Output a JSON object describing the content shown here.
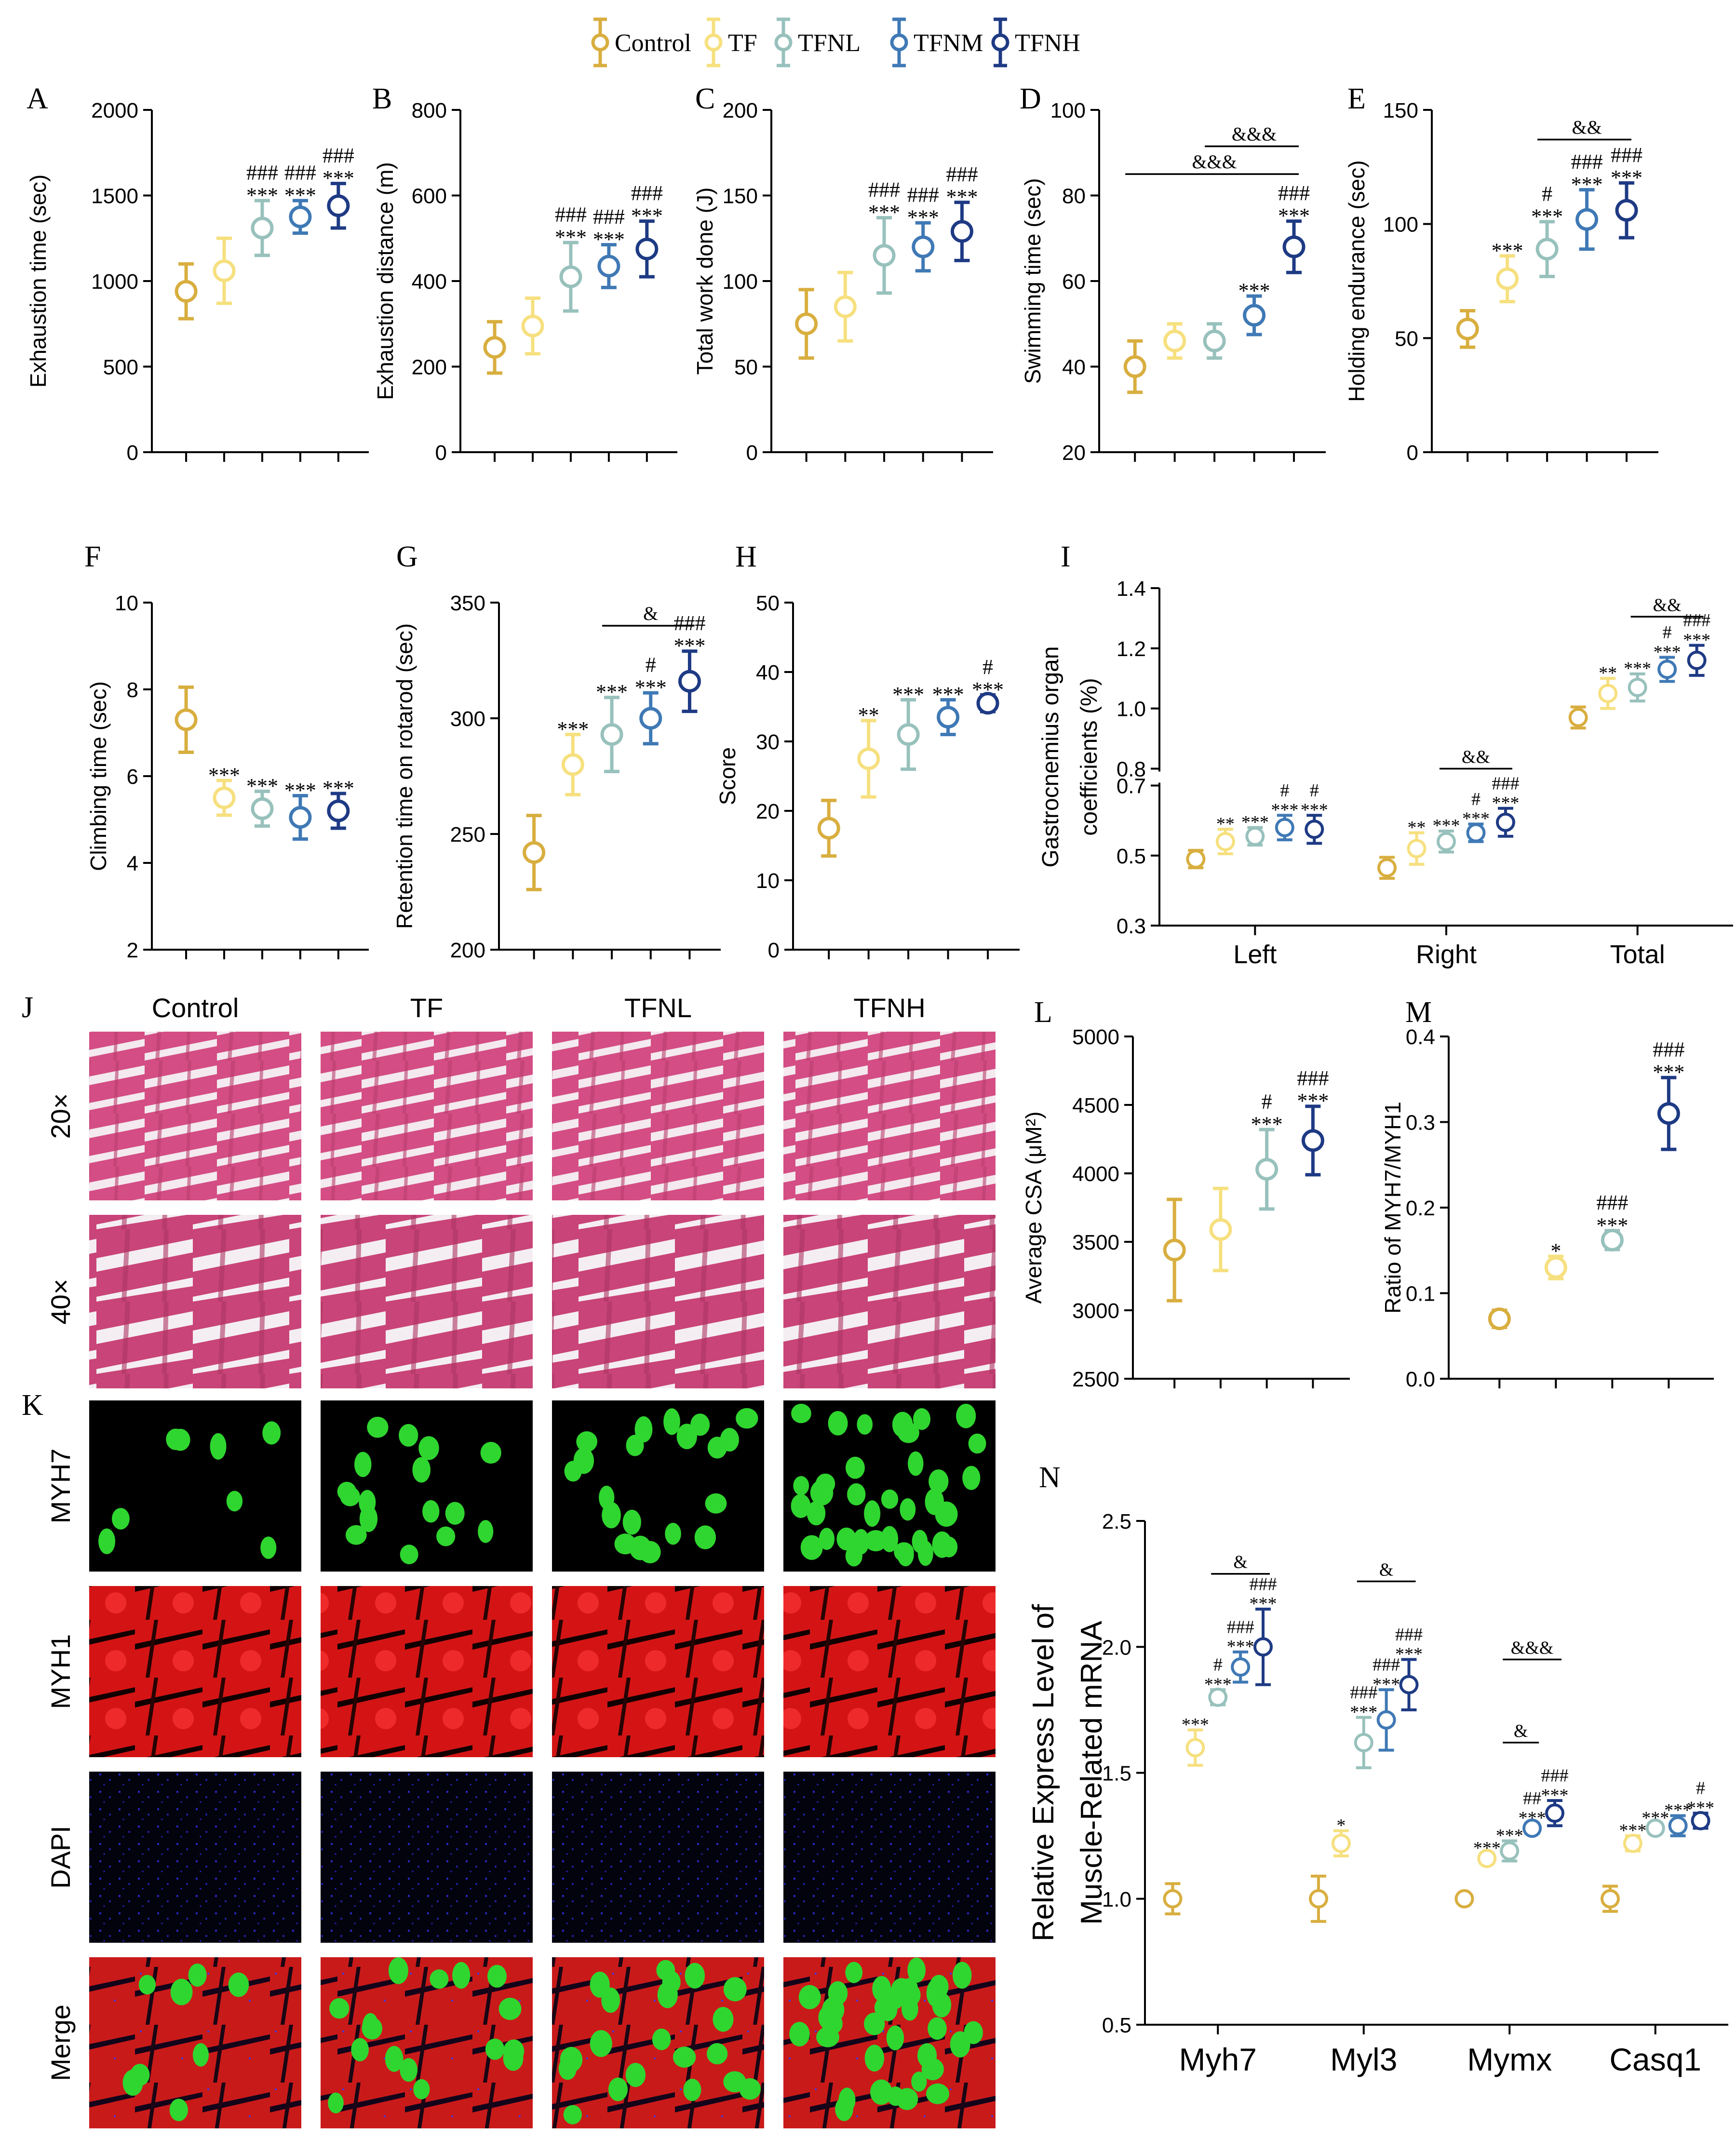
{
  "colors": {
    "Control": "#D8AE3F",
    "TF": "#F6E07F",
    "TFNL": "#98C1BC",
    "TFNM": "#3F79B5",
    "TFNH": "#1E3A84",
    "text": "#000000"
  },
  "legend": [
    "Control",
    "TF",
    "TFNL",
    "TFNM",
    "TFNH"
  ],
  "chart_data": [
    {
      "id": "A",
      "type": "scatter",
      "ylabel": "Exhaustion time (sec)",
      "ylim": [
        0,
        2000
      ],
      "ticks": [
        0,
        500,
        1000,
        1500,
        2000
      ],
      "groups": [
        "Control",
        "TF",
        "TFNL",
        "TFNM",
        "TFNH"
      ],
      "values": [
        940,
        1060,
        1310,
        1375,
        1440
      ],
      "errors": [
        160,
        190,
        160,
        95,
        130
      ],
      "annotations": [
        [],
        [],
        [
          "###",
          "***"
        ],
        [
          "###",
          "***"
        ],
        [
          "###",
          "***"
        ]
      ],
      "brackets": []
    },
    {
      "id": "B",
      "type": "scatter",
      "ylabel": "Exhaustion distance (m)",
      "ylim": [
        0,
        800
      ],
      "ticks": [
        0,
        200,
        400,
        600,
        800
      ],
      "groups": [
        "Control",
        "TF",
        "TFNL",
        "TFNM",
        "TFNH"
      ],
      "values": [
        245,
        295,
        410,
        435,
        475
      ],
      "errors": [
        60,
        65,
        80,
        50,
        65
      ],
      "annotations": [
        [],
        [],
        [
          "###",
          "***"
        ],
        [
          "###",
          "***"
        ],
        [
          "###",
          "***"
        ]
      ],
      "brackets": []
    },
    {
      "id": "C",
      "type": "scatter",
      "ylabel": "Total work done (J)",
      "ylim": [
        0,
        200
      ],
      "ticks": [
        0,
        50,
        100,
        150,
        200
      ],
      "groups": [
        "Control",
        "TF",
        "TFNL",
        "TFNM",
        "TFNH"
      ],
      "values": [
        75,
        85,
        115,
        120,
        129
      ],
      "errors": [
        20,
        20,
        22,
        14,
        17
      ],
      "annotations": [
        [],
        [],
        [
          "###",
          "***"
        ],
        [
          "###",
          "***"
        ],
        [
          "###",
          "***"
        ]
      ],
      "brackets": []
    },
    {
      "id": "D",
      "type": "scatter",
      "ylabel": "Swimming time (sec)",
      "ylim": [
        20,
        100
      ],
      "ticks": [
        20,
        40,
        60,
        80,
        100
      ],
      "groups": [
        "Control",
        "TF",
        "TFNL",
        "TFNM",
        "TFNH"
      ],
      "values": [
        40,
        46,
        46,
        52,
        68
      ],
      "errors": [
        6,
        4,
        4,
        4.5,
        6
      ],
      "annotations": [
        [],
        [],
        [],
        [
          "***"
        ],
        [
          "###",
          "***"
        ]
      ],
      "brackets": [
        {
          "from": 0,
          "to": 4,
          "y": 85,
          "label": "&&&"
        },
        {
          "from": 2,
          "to": 4,
          "y": 91.5,
          "label": "&&&"
        }
      ]
    },
    {
      "id": "E",
      "type": "scatter",
      "ylabel": "Holding endurance (sec)",
      "ylim": [
        0,
        150
      ],
      "ticks": [
        0,
        50,
        100,
        150
      ],
      "groups": [
        "Control",
        "TF",
        "TFNL",
        "TFNM",
        "TFNH"
      ],
      "values": [
        54,
        76,
        89,
        102,
        106
      ],
      "errors": [
        8,
        10,
        12,
        13,
        12
      ],
      "annotations": [
        [],
        [
          "***"
        ],
        [
          "#",
          "***"
        ],
        [
          "###",
          "***"
        ],
        [
          "###",
          "***"
        ]
      ],
      "brackets": [
        {
          "from": 2,
          "to": 4,
          "y": 137,
          "label": "&&"
        }
      ]
    },
    {
      "id": "F",
      "type": "scatter",
      "ylabel": "Climbing time (sec)",
      "ylim": [
        2,
        10
      ],
      "ticks": [
        2,
        4,
        6,
        8,
        10
      ],
      "groups": [
        "Control",
        "TF",
        "TFNL",
        "TFNM",
        "TFNH"
      ],
      "values": [
        7.3,
        5.5,
        5.25,
        5.05,
        5.2
      ],
      "errors": [
        0.75,
        0.4,
        0.4,
        0.5,
        0.4
      ],
      "annotations": [
        [],
        [
          "***"
        ],
        [
          "***"
        ],
        [
          "***"
        ],
        [
          "***"
        ]
      ],
      "brackets": []
    },
    {
      "id": "G",
      "type": "scatter",
      "ylabel": "Retention time on rotarod (sec)",
      "ylim": [
        200,
        350
      ],
      "ticks": [
        200,
        250,
        300,
        350
      ],
      "groups": [
        "Control",
        "TF",
        "TFNL",
        "TFNM",
        "TFNH"
      ],
      "values": [
        242,
        280,
        293,
        300,
        316
      ],
      "errors": [
        16,
        13,
        16,
        11,
        13
      ],
      "annotations": [
        [],
        [
          "***"
        ],
        [
          "***"
        ],
        [
          "#",
          "***"
        ],
        [
          "###",
          "***"
        ]
      ],
      "brackets": [
        {
          "from": 2,
          "to": 4,
          "y": 340,
          "label": "&"
        }
      ]
    },
    {
      "id": "H",
      "type": "scatter",
      "ylabel": "Score",
      "ylim": [
        0,
        50
      ],
      "ticks": [
        0,
        10,
        20,
        30,
        40,
        50
      ],
      "groups": [
        "Control",
        "TF",
        "TFNL",
        "TFNM",
        "TFNH"
      ],
      "values": [
        17.5,
        27.5,
        31,
        33.5,
        35.5
      ],
      "errors": [
        4,
        5.5,
        5,
        2.5,
        1.2
      ],
      "annotations": [
        [],
        [
          "**"
        ],
        [
          "***"
        ],
        [
          "***"
        ],
        [
          "#",
          "***"
        ]
      ],
      "brackets": []
    },
    {
      "id": "I",
      "type": "scatter",
      "ylabel": "Gastrocnemius organ coefficients (%)",
      "ylabel_lines": [
        "Gastrocnemius organ",
        "coefficients (%)"
      ],
      "ylim": [
        0.3,
        1.4
      ],
      "ticks": [
        0.3,
        0.5,
        0.7,
        0.8,
        1.0,
        1.2,
        1.4
      ],
      "categories": [
        "Left",
        "Right",
        "Total"
      ],
      "series": [
        {
          "name": "Control",
          "values": [
            0.49,
            0.465,
            0.97
          ],
          "errors": [
            0.025,
            0.03,
            0.035
          ],
          "annotations": [
            [],
            [],
            []
          ]
        },
        {
          "name": "TF",
          "values": [
            0.54,
            0.52,
            1.05
          ],
          "errors": [
            0.035,
            0.045,
            0.05
          ],
          "annotations": [
            [
              "**"
            ],
            [
              "**"
            ],
            [
              "**"
            ]
          ]
        },
        {
          "name": "TFNL",
          "values": [
            0.555,
            0.54,
            1.07
          ],
          "errors": [
            0.025,
            0.03,
            0.045
          ],
          "annotations": [
            [
              "***"
            ],
            [
              "***"
            ],
            [
              "***"
            ]
          ]
        },
        {
          "name": "TFNM",
          "values": [
            0.58,
            0.565,
            1.13
          ],
          "errors": [
            0.035,
            0.025,
            0.04
          ],
          "annotations": [
            [
              "#",
              "***"
            ],
            [
              "#",
              "***"
            ],
            [
              "#",
              "***"
            ]
          ]
        },
        {
          "name": "TFNH",
          "values": [
            0.575,
            0.595,
            1.16
          ],
          "errors": [
            0.04,
            0.04,
            0.05
          ],
          "annotations": [
            [
              "#",
              "***"
            ],
            [
              "###",
              "***"
            ],
            [
              "###",
              "***"
            ]
          ]
        }
      ],
      "brackets": [
        {
          "cat": 1,
          "from": 2,
          "to": 4,
          "y": 0.76,
          "label": "&&"
        },
        {
          "cat": 2,
          "from": 2,
          "to": 4,
          "y": 1.305,
          "label": "&&"
        }
      ]
    },
    {
      "id": "L",
      "type": "scatter",
      "ylabel": "Average CSA (μM²)",
      "ylim": [
        2500,
        5000
      ],
      "ticks": [
        2500,
        3000,
        3500,
        4000,
        4500,
        5000
      ],
      "groups": [
        "Control",
        "TF",
        "TFNL",
        "TFNH"
      ],
      "values": [
        3440,
        3590,
        4030,
        4240
      ],
      "errors": [
        370,
        300,
        290,
        250
      ],
      "annotations": [
        [],
        [],
        [
          "#",
          "***"
        ],
        [
          "###",
          "***"
        ]
      ],
      "brackets": []
    },
    {
      "id": "M",
      "type": "scatter",
      "ylabel": "Ratio of MYH7/MYH1",
      "ylim": [
        0.0,
        0.4
      ],
      "ticks": [
        0.0,
        0.1,
        0.2,
        0.3,
        0.4
      ],
      "groups": [
        "Control",
        "TF",
        "TFNL",
        "TFNH"
      ],
      "values": [
        0.07,
        0.13,
        0.162,
        0.31
      ],
      "errors": [
        0.01,
        0.013,
        0.011,
        0.042
      ],
      "annotations": [
        [],
        [
          "*"
        ],
        [
          "###",
          "***"
        ],
        [
          "###",
          "***"
        ]
      ],
      "brackets": []
    },
    {
      "id": "N",
      "type": "scatter",
      "ylabel": "Relative Express Level of Muscle-Related mRNA",
      "ylabel_lines": [
        "Relative Express Level of",
        "Muscle-Related mRNA"
      ],
      "ylim": [
        0.5,
        2.5
      ],
      "ticks": [
        0.5,
        1.0,
        1.5,
        2.0,
        2.5
      ],
      "categories": [
        "Myh7",
        "Myl3",
        "Mymx",
        "Casq1"
      ],
      "series": [
        {
          "name": "Control",
          "values": [
            1.0,
            1.0,
            1.0,
            1.0
          ],
          "errors": [
            0.06,
            0.09,
            0.0,
            0.05
          ],
          "annotations": [
            [],
            [],
            [],
            []
          ]
        },
        {
          "name": "TF",
          "values": [
            1.6,
            1.22,
            1.16,
            1.22
          ],
          "errors": [
            0.07,
            0.05,
            0.02,
            0.03
          ],
          "annotations": [
            [
              "***"
            ],
            [
              "*"
            ],
            [
              "***"
            ],
            [
              "***"
            ]
          ]
        },
        {
          "name": "TFNL",
          "values": [
            1.8,
            1.62,
            1.19,
            1.28
          ],
          "errors": [
            0.03,
            0.1,
            0.04,
            0.02
          ],
          "annotations": [
            [
              "#",
              "***"
            ],
            [
              "###",
              "***"
            ],
            [
              "***"
            ],
            [
              "***"
            ]
          ]
        },
        {
          "name": "TFNM",
          "values": [
            1.92,
            1.71,
            1.28,
            1.29
          ],
          "errors": [
            0.06,
            0.12,
            0.02,
            0.04
          ],
          "annotations": [
            [
              "###",
              "***"
            ],
            [
              "###",
              "***"
            ],
            [
              "##",
              "***"
            ],
            [
              "***"
            ]
          ]
        },
        {
          "name": "TFNH",
          "values": [
            2.0,
            1.85,
            1.34,
            1.31
          ],
          "errors": [
            0.15,
            0.1,
            0.05,
            0.03
          ],
          "annotations": [
            [
              "###",
              "***"
            ],
            [
              "###",
              "***"
            ],
            [
              "###",
              "***"
            ],
            [
              "#",
              "***"
            ]
          ]
        }
      ],
      "brackets": [
        {
          "cat": 0,
          "from": 2,
          "to": 4,
          "y": 2.29,
          "label": "&"
        },
        {
          "cat": 1,
          "from": 2,
          "to": 4,
          "y": 2.26,
          "label": "&"
        },
        {
          "cat": 2,
          "from": 2,
          "to": 4,
          "y": 1.95,
          "label": "&&&"
        },
        {
          "cat": 2,
          "from": 2,
          "to": 3,
          "y": 1.62,
          "label": "&"
        }
      ]
    }
  ],
  "panel_letters": {
    "J": "J",
    "K": "K"
  },
  "he_panel": {
    "columns": [
      "Control",
      "TF",
      "TFNL",
      "TFNH"
    ],
    "rows": [
      "20×",
      "40×"
    ]
  },
  "if_panel": {
    "rows": [
      "MYH7",
      "MYH1",
      "DAPI",
      "Merge"
    ]
  }
}
